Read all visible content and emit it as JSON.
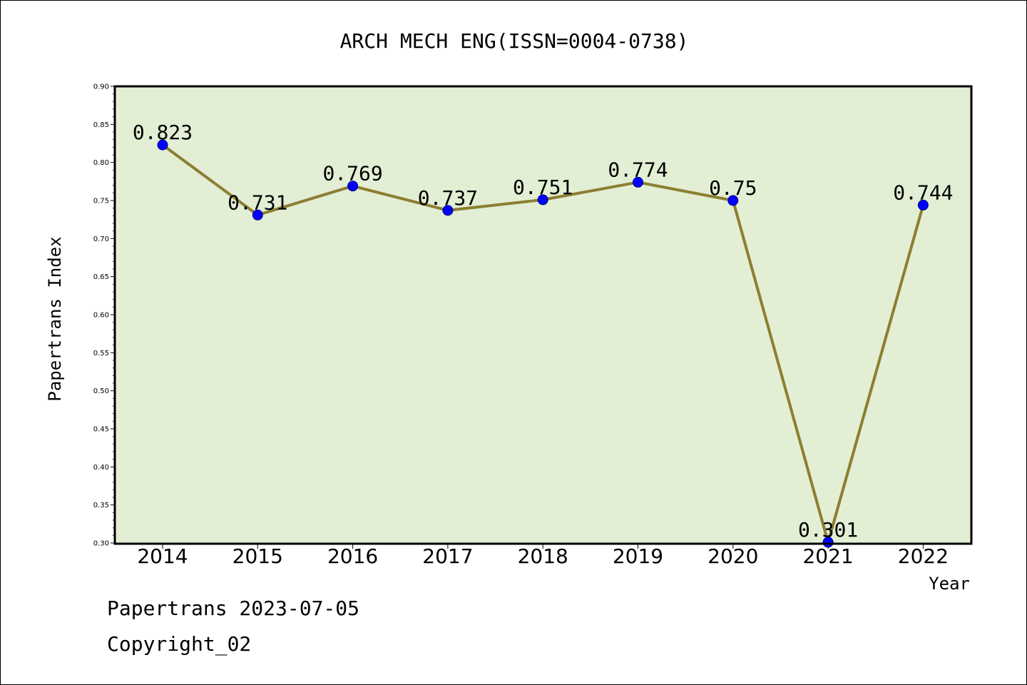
{
  "chart_data": {
    "type": "line",
    "title": "ARCH MECH ENG(ISSN=0004-0738)",
    "xlabel": "Year",
    "ylabel": "Papertrans Index",
    "categories": [
      "2014",
      "2015",
      "2016",
      "2017",
      "2018",
      "2019",
      "2020",
      "2021",
      "2022"
    ],
    "series": [
      {
        "values": [
          0.823,
          0.731,
          0.769,
          0.737,
          0.751,
          0.774,
          0.75,
          0.301,
          0.744
        ],
        "labels": [
          "0.823",
          "0.731",
          "0.769",
          "0.737",
          "0.751",
          "0.774",
          "0.75",
          "0.301",
          "0.744"
        ]
      }
    ],
    "ylim": [
      0.3,
      0.9
    ],
    "yticks": [
      "0.30",
      "0.35",
      "0.40",
      "0.45",
      "0.50",
      "0.55",
      "0.60",
      "0.65",
      "0.70",
      "0.75",
      "0.80",
      "0.85",
      "0.90"
    ],
    "grid": false,
    "colors": {
      "plot_background": "#e2efd4",
      "line": "#8c7e32",
      "marker": "#0000ff",
      "marker_edge": "#000080"
    }
  },
  "footer": {
    "line1": "Papertrans 2023-07-05",
    "line2": "Copyright_02"
  }
}
